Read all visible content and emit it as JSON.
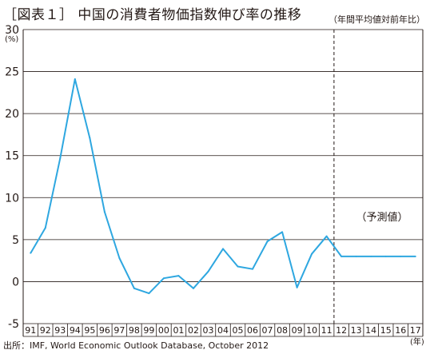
{
  "title": "［図表１］ 中国の消費者物価指数伸び率の推移",
  "note": "（年間平均値対前年比）",
  "source": "出所：IMF, World Economic Outlook Database, October 2012",
  "colors": {
    "line": "#2ea7e0",
    "grid": "#231815",
    "divider": "#231815"
  },
  "chart_data": {
    "type": "line",
    "title": "［図表１］ 中国の消費者物価指数伸び率の推移",
    "xlabel": "(年)",
    "ylabel": "(%)",
    "ylim": [
      -5,
      30
    ],
    "yticks": [
      30,
      25,
      20,
      15,
      10,
      5,
      0,
      -5
    ],
    "grid": true,
    "categories": [
      "91",
      "92",
      "93",
      "94",
      "95",
      "96",
      "97",
      "98",
      "99",
      "00",
      "01",
      "02",
      "03",
      "04",
      "05",
      "06",
      "07",
      "08",
      "09",
      "10",
      "11",
      "12",
      "13",
      "14",
      "15",
      "16",
      "17"
    ],
    "series": [
      {
        "values": [
          3.4,
          6.4,
          14.7,
          24.1,
          17.1,
          8.3,
          2.8,
          -0.8,
          -1.4,
          0.4,
          0.7,
          -0.8,
          1.2,
          3.9,
          1.8,
          1.5,
          4.8,
          5.9,
          -0.7,
          3.3,
          5.4,
          3.0,
          3.0,
          3.0,
          3.0,
          3.0,
          3.0
        ]
      }
    ],
    "forecast_start": "12",
    "annotations": [
      "（予測値）"
    ]
  }
}
